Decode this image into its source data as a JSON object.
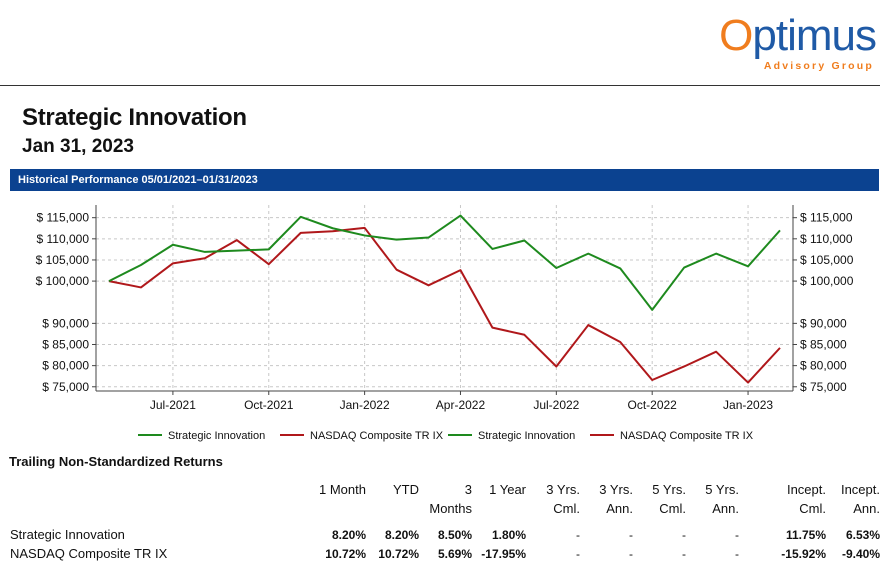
{
  "logo": {
    "first_letter": "O",
    "rest": "ptimus",
    "sub": "Advisory Group"
  },
  "title": "Strategic Innovation",
  "date": "Jan 31, 2023",
  "banner": "Historical Performance 05/01/2021–01/31/2023",
  "chart_data": {
    "type": "line",
    "title": "Historical Performance 05/01/2021–01/31/2023",
    "x": [
      "May-2021",
      "Jun-2021",
      "Jul-2021",
      "Aug-2021",
      "Sep-2021",
      "Oct-2021",
      "Nov-2021",
      "Dec-2021",
      "Jan-2022",
      "Feb-2022",
      "Mar-2022",
      "Apr-2022",
      "May-2022",
      "Jun-2022",
      "Jul-2022",
      "Aug-2022",
      "Sep-2022",
      "Oct-2022",
      "Nov-2022",
      "Dec-2022",
      "Jan-2023",
      "Feb-2023"
    ],
    "x_tick_labels": [
      "Jul-2021",
      "Oct-2021",
      "Jan-2022",
      "Apr-2022",
      "Jul-2022",
      "Oct-2022",
      "Jan-2023"
    ],
    "y_tick_labels": [
      "$ 115,000",
      "$ 110,000",
      "$ 105,000",
      "$ 100,000",
      "$ 90,000",
      "$ 85,000",
      "$ 80,000",
      "$ 75,000"
    ],
    "y_ticks": [
      115000,
      110000,
      105000,
      100000,
      90000,
      85000,
      80000,
      75000
    ],
    "ylim": [
      74000,
      118000
    ],
    "xlabel": "",
    "ylabel": "",
    "grid": true,
    "series": [
      {
        "name": "Strategic Innovation",
        "color": "#1e8a1e",
        "values": [
          100000,
          103800,
          108600,
          106900,
          107200,
          107500,
          115200,
          112500,
          110800,
          109800,
          110300,
          115500,
          107600,
          109600,
          103100,
          106500,
          103000,
          93200,
          103200,
          106500,
          103500,
          112000
        ]
      },
      {
        "name": "NASDAQ Composite TR IX",
        "color": "#b0181b",
        "values": [
          100000,
          98500,
          104200,
          105400,
          109700,
          104000,
          111400,
          111800,
          112600,
          102700,
          99000,
          102600,
          89000,
          87300,
          79800,
          89600,
          85600,
          76600,
          79800,
          83300,
          76000,
          84200
        ]
      }
    ],
    "legend": [
      "Strategic Innovation",
      "NASDAQ Composite TR IX",
      "Strategic Innovation",
      "NASDAQ Composite TR IX"
    ],
    "legend_position": "bottom"
  },
  "returns": {
    "section_title": "Trailing Non-Standardized Returns",
    "columns": [
      {
        "line1": "1 Month",
        "line2": ""
      },
      {
        "line1": "YTD",
        "line2": ""
      },
      {
        "line1": "3",
        "line2": "Months"
      },
      {
        "line1": "1 Year",
        "line2": ""
      },
      {
        "line1": "3 Yrs.",
        "line2": "Cml."
      },
      {
        "line1": "3 Yrs.",
        "line2": "Ann."
      },
      {
        "line1": "5 Yrs.",
        "line2": "Cml."
      },
      {
        "line1": "5 Yrs.",
        "line2": "Ann."
      },
      {
        "line1": "Incept.",
        "line2": "Cml."
      },
      {
        "line1": "Incept.",
        "line2": "Ann."
      }
    ],
    "rows": [
      {
        "label": "Strategic Innovation",
        "values": [
          "8.20%",
          "8.20%",
          "8.50%",
          "1.80%",
          "-",
          "-",
          "-",
          "-",
          "11.75%",
          "6.53%"
        ]
      },
      {
        "label": "NASDAQ Composite TR IX",
        "values": [
          "10.72%",
          "10.72%",
          "5.69%",
          "-17.95%",
          "-",
          "-",
          "-",
          "-",
          "-15.92%",
          "-9.40%"
        ]
      }
    ]
  }
}
